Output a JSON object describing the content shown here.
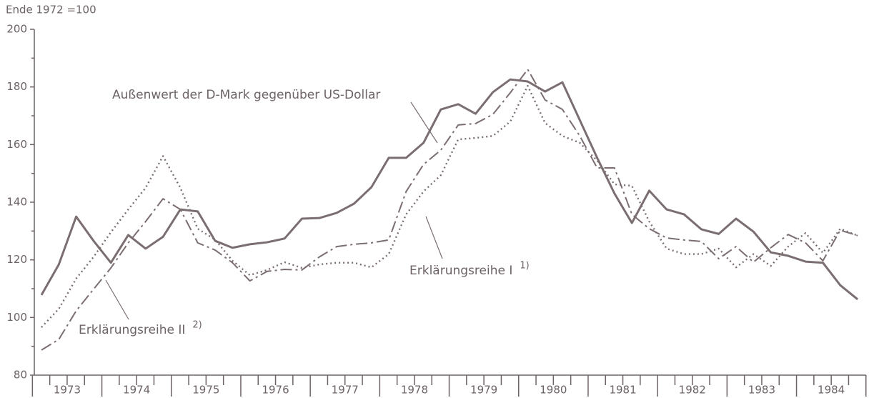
{
  "chart_data": {
    "type": "line",
    "y_label": "Ende 1972 =100",
    "categories": [
      "1973",
      null,
      null,
      null,
      "1974",
      null,
      null,
      null,
      "1975",
      null,
      null,
      null,
      "1976",
      null,
      null,
      null,
      "1977",
      null,
      null,
      null,
      "1978",
      null,
      null,
      null,
      "1979",
      null,
      null,
      null,
      "1980",
      null,
      null,
      null,
      "1981",
      null,
      null,
      null,
      "1982",
      null,
      null,
      null,
      "1983",
      null,
      null,
      null,
      "1984",
      null,
      null,
      null
    ],
    "ylim": [
      80,
      200
    ],
    "yticks": [
      80,
      100,
      120,
      140,
      160,
      180,
      200
    ],
    "series": [
      {
        "name": "Außenwert der D-Mark gegenüber US-Dollar",
        "color": "#7a6e70",
        "style": "solid",
        "values": [
          107.8,
          118.4,
          135,
          126.6,
          119,
          128.6,
          123.9,
          128,
          137.5,
          136.8,
          126.6,
          124.2,
          125.4,
          126.1,
          127.4,
          134.3,
          134.5,
          136.3,
          139.5,
          145.2,
          155.4,
          155.4,
          160.6,
          172.2,
          174,
          170.7,
          178.2,
          182.6,
          181.9,
          178.4,
          181.6,
          168.5,
          155.4,
          143,
          132.8,
          144,
          137.5,
          135.8,
          130.6,
          129,
          134.3,
          129.8,
          122.6,
          121.4,
          119.4,
          119,
          111.2,
          106.3
        ]
      },
      {
        "name": "Erklärungsreihe I",
        "footnote": "1)",
        "color": "#7a6e70",
        "style": "dotted",
        "values": [
          96.6,
          103,
          113.5,
          121,
          129.6,
          137.5,
          145,
          156,
          145,
          130.8,
          127,
          119.7,
          114.7,
          116.5,
          119.2,
          117.2,
          118.4,
          119,
          119,
          117.4,
          122,
          135.8,
          143.7,
          149.4,
          161.8,
          162.3,
          163,
          168,
          180.4,
          167.5,
          163,
          160.6,
          154.4,
          146.2,
          145.7,
          133.3,
          123.9,
          122,
          122,
          123.9,
          117.4,
          122,
          117.9,
          124.6,
          129.3,
          122.4,
          130.8,
          128.4
        ]
      },
      {
        "name": "Erklärungsreihe II",
        "footnote": "2)",
        "color": "#7a6e70",
        "style": "dashdot",
        "values": [
          88.7,
          92.4,
          102.3,
          109.8,
          117.2,
          125.9,
          133.3,
          141.2,
          137.5,
          125.9,
          123.4,
          119,
          112.7,
          116,
          116.7,
          116.5,
          121,
          124.6,
          125.4,
          125.9,
          126.9,
          143.7,
          153.1,
          158.1,
          166.8,
          167.3,
          170.5,
          178,
          186.1,
          175.5,
          172.2,
          163,
          151.9,
          151.9,
          135.8,
          130.8,
          127.6,
          126.9,
          126.4,
          120.4,
          124.6,
          119.2,
          124.2,
          128.8,
          125.9,
          119.7,
          130.3,
          128.4
        ]
      }
    ]
  }
}
